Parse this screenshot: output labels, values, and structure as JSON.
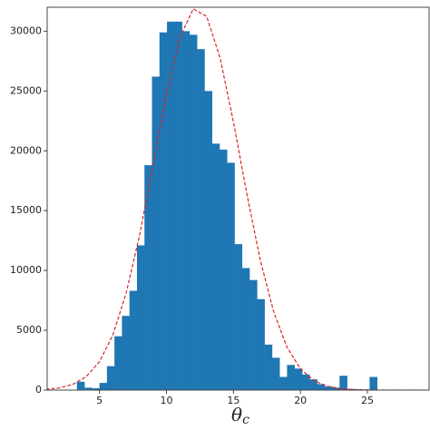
{
  "chart_data": {
    "type": "histogram",
    "xlabel": "θ",
    "xlabel_sub": "c",
    "bins": [
      3.32,
      3.88,
      4.44,
      5.0,
      5.56,
      6.12,
      6.68,
      7.24,
      7.8,
      8.36,
      8.92,
      9.48,
      10.04,
      10.6,
      11.16,
      11.72,
      12.28,
      12.84,
      13.4,
      13.96,
      14.52,
      15.08,
      15.64,
      16.2,
      16.76,
      17.32,
      17.88,
      18.44,
      19.0,
      19.56,
      20.12,
      20.68,
      21.24,
      21.8,
      22.36,
      22.92,
      23.48,
      24.04,
      24.6,
      25.16,
      25.72
    ],
    "counts": [
      700,
      200,
      150,
      600,
      2000,
      4500,
      6200,
      8300,
      12100,
      18800,
      26200,
      29900,
      30800,
      30800,
      30000,
      29700,
      28500,
      25000,
      20600,
      20100,
      19000,
      12200,
      10200,
      9200,
      7600,
      3800,
      2700,
      1100,
      2100,
      1800,
      1300,
      900,
      500,
      300,
      200,
      1200,
      100,
      80,
      50,
      1100
    ],
    "color": "#1f77b4",
    "fit": {
      "color": "#d62728",
      "x": [
        1,
        2,
        3,
        4,
        5,
        6,
        7,
        8,
        9,
        10,
        11,
        12,
        13,
        14,
        15,
        16,
        17,
        18,
        19,
        20,
        21,
        22,
        23,
        24,
        25,
        26,
        27,
        28,
        29
      ],
      "values": [
        63,
        180,
        470,
        1110,
        2370,
        4600,
        8130,
        12970,
        18800,
        24700,
        29470,
        31860,
        31240,
        27780,
        22410,
        16410,
        10880,
        6550,
        3580,
        1770,
        790,
        320,
        120,
        40,
        12,
        3,
        1,
        0,
        0
      ]
    },
    "xlim": [
      1.1,
      29.6
    ],
    "ylim": [
      0,
      32000
    ],
    "xticks": [
      5,
      10,
      15,
      20,
      25
    ],
    "yticks": [
      0,
      5000,
      10000,
      15000,
      20000,
      25000,
      30000
    ],
    "grid": false
  }
}
